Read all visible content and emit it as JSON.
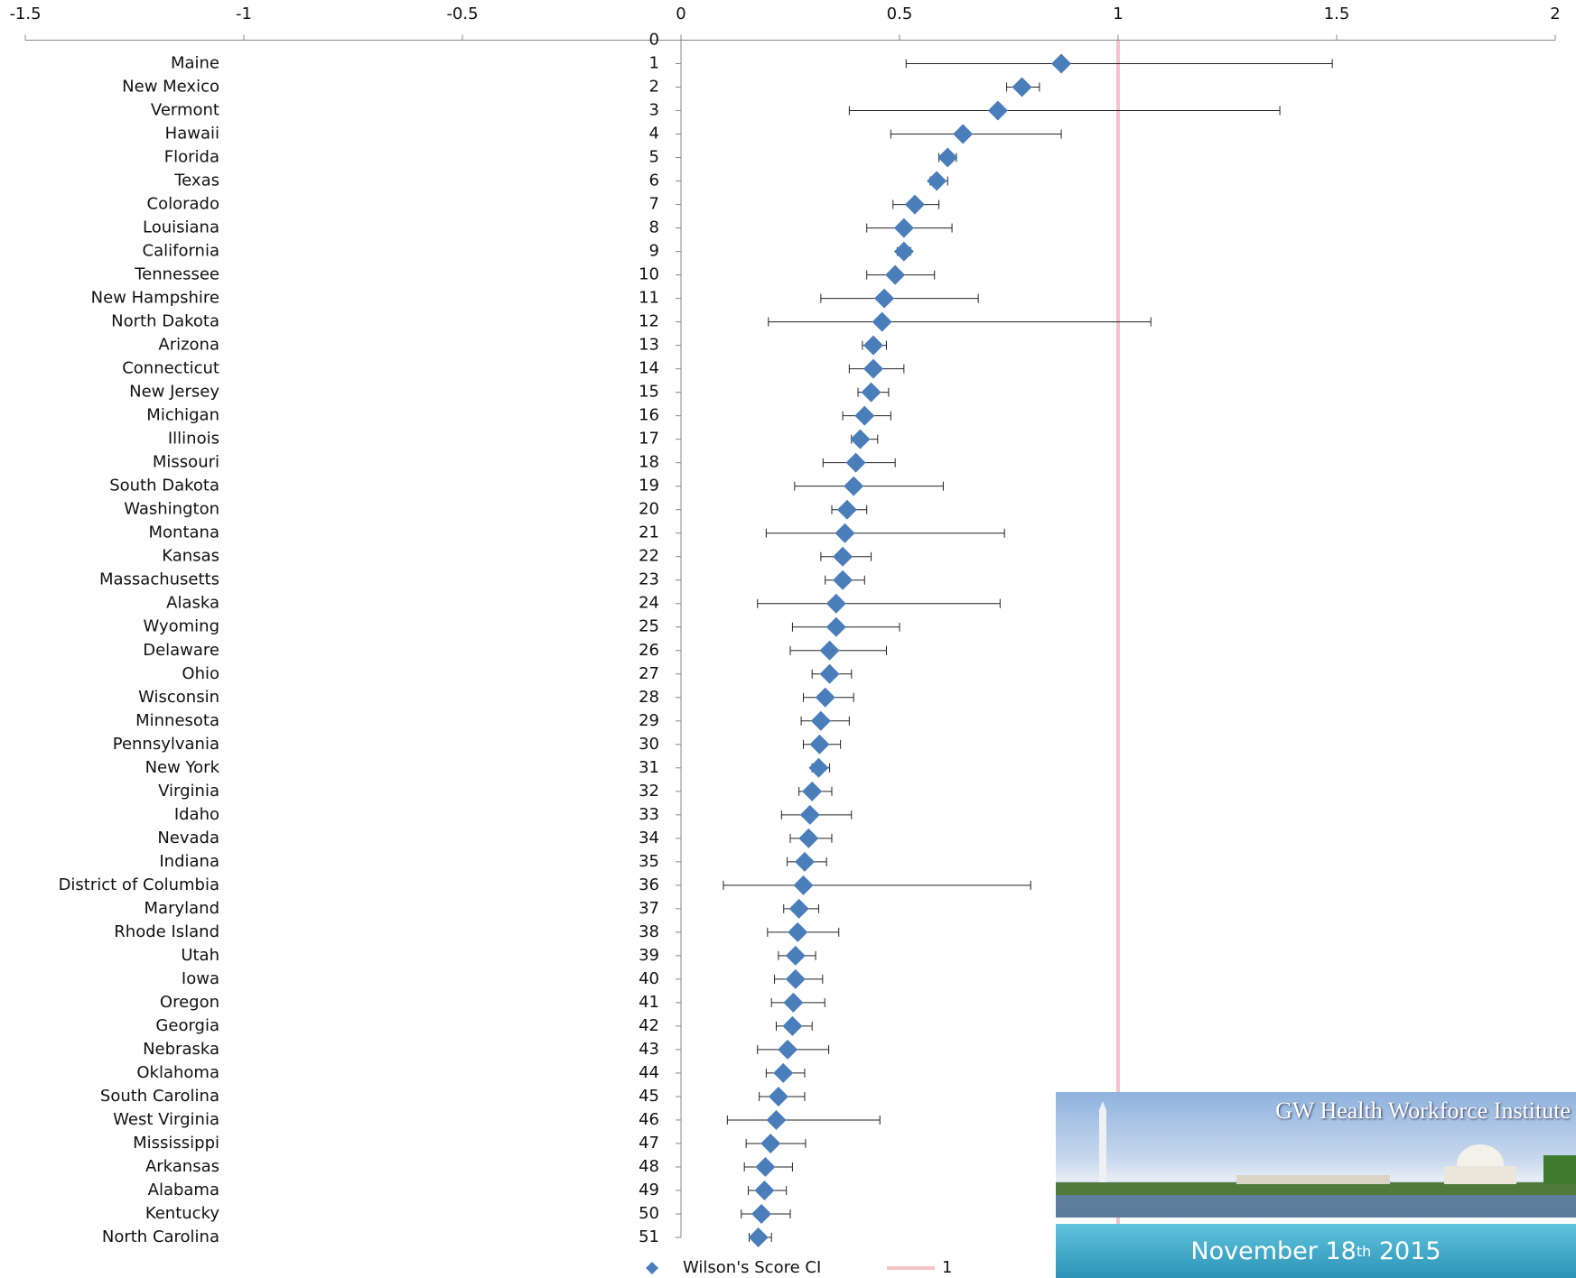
{
  "chart_data": {
    "type": "scatter-ci",
    "xlim": [
      -1.5,
      2
    ],
    "xticks": [
      -1.5,
      -1,
      -0.5,
      0,
      0.5,
      1,
      1.5,
      2
    ],
    "ylim": [
      0,
      51
    ],
    "yticks": [
      0,
      1,
      2,
      3,
      4,
      5,
      6,
      7,
      8,
      9,
      10,
      11,
      12,
      13,
      14,
      15,
      16,
      17,
      18,
      19,
      20,
      21,
      22,
      23,
      24,
      25,
      26,
      27,
      28,
      29,
      30,
      31,
      32,
      33,
      34,
      35,
      36,
      37,
      38,
      39,
      40,
      41,
      42,
      43,
      44,
      45,
      46,
      47,
      48,
      49,
      50,
      51
    ],
    "categories": [
      "Maine",
      "New Mexico",
      "Vermont",
      "Hawaii",
      "Florida",
      "Texas",
      "Colorado",
      "Louisiana",
      "California",
      "Tennessee",
      "New Hampshire",
      "North Dakota",
      "Arizona",
      "Connecticut",
      "New Jersey",
      "Michigan",
      "Illinois",
      "Missouri",
      "South Dakota",
      "Washington",
      "Montana",
      "Kansas",
      "Massachusetts",
      "Alaska",
      "Wyoming",
      "Delaware",
      "Ohio",
      "Wisconsin",
      "Minnesota",
      "Pennsylvania",
      "New York",
      "Virginia",
      "Idaho",
      "Nevada",
      "Indiana",
      "District of Columbia",
      "Maryland",
      "Rhode Island",
      "Utah",
      "Iowa",
      "Oregon",
      "Georgia",
      "Nebraska",
      "Oklahoma",
      "South Carolina",
      "West Virginia",
      "Mississippi",
      "Arkansas",
      "Alabama",
      "Kentucky",
      "North Carolina"
    ],
    "series": [
      {
        "name": "Wilson's Score CI",
        "color": "#4a7ebb",
        "y": [
          1,
          2,
          3,
          4,
          5,
          6,
          7,
          8,
          9,
          10,
          11,
          12,
          13,
          14,
          15,
          16,
          17,
          18,
          19,
          20,
          21,
          22,
          23,
          24,
          25,
          26,
          27,
          28,
          29,
          30,
          31,
          32,
          33,
          34,
          35,
          36,
          37,
          38,
          39,
          40,
          41,
          42,
          43,
          44,
          45,
          46,
          47,
          48,
          49,
          50,
          51
        ],
        "values": [
          0.87,
          0.78,
          0.725,
          0.645,
          0.61,
          0.585,
          0.535,
          0.51,
          0.51,
          0.49,
          0.465,
          0.46,
          0.44,
          0.44,
          0.435,
          0.42,
          0.41,
          0.4,
          0.395,
          0.38,
          0.375,
          0.37,
          0.37,
          0.355,
          0.355,
          0.34,
          0.34,
          0.33,
          0.32,
          0.317,
          0.315,
          0.3,
          0.295,
          0.292,
          0.283,
          0.28,
          0.27,
          0.267,
          0.262,
          0.262,
          0.257,
          0.255,
          0.244,
          0.234,
          0.223,
          0.218,
          0.205,
          0.193,
          0.191,
          0.184,
          0.177
        ],
        "lower": [
          0.515,
          0.745,
          0.385,
          0.48,
          0.59,
          0.57,
          0.485,
          0.425,
          0.495,
          0.425,
          0.32,
          0.2,
          0.415,
          0.385,
          0.405,
          0.37,
          0.39,
          0.325,
          0.26,
          0.345,
          0.195,
          0.32,
          0.33,
          0.175,
          0.255,
          0.25,
          0.3,
          0.28,
          0.275,
          0.28,
          0.3,
          0.27,
          0.23,
          0.25,
          0.243,
          0.097,
          0.235,
          0.198,
          0.223,
          0.214,
          0.207,
          0.218,
          0.175,
          0.195,
          0.179,
          0.106,
          0.149,
          0.145,
          0.154,
          0.138,
          0.156
        ],
        "upper": [
          1.49,
          0.82,
          1.37,
          0.87,
          0.63,
          0.61,
          0.59,
          0.62,
          0.525,
          0.58,
          0.68,
          1.075,
          0.47,
          0.51,
          0.475,
          0.48,
          0.45,
          0.49,
          0.6,
          0.425,
          0.74,
          0.435,
          0.42,
          0.73,
          0.5,
          0.47,
          0.39,
          0.395,
          0.385,
          0.365,
          0.34,
          0.345,
          0.39,
          0.345,
          0.333,
          0.8,
          0.315,
          0.361,
          0.308,
          0.324,
          0.329,
          0.3,
          0.338,
          0.283,
          0.283,
          0.455,
          0.285,
          0.255,
          0.241,
          0.25,
          0.207
        ]
      }
    ],
    "reference_lines": [
      {
        "name": "1",
        "value": 1,
        "color": "#f2c4c6"
      }
    ]
  },
  "banner": {
    "title": "GW Health Workforce Institute",
    "date_main": "November 18",
    "date_sup": "th",
    "date_year": "2015"
  }
}
